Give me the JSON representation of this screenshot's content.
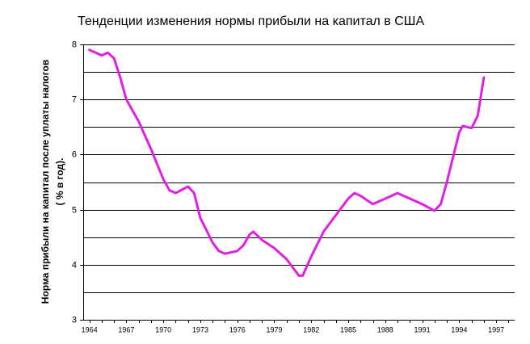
{
  "chart_data": {
    "type": "line",
    "title": "Тенденции изменения нормы прибыли на капитал в США",
    "y_label": [
      "Норма прибыли на капитал после уплаты налогов",
      "( % в год)."
    ],
    "x": [
      1964,
      1965,
      1965.5,
      1966,
      1966.5,
      1967,
      1968,
      1969,
      1970,
      1970.5,
      1971,
      1972,
      1972.5,
      1973,
      1974,
      1974.5,
      1975,
      1976,
      1976.5,
      1977,
      1977.3,
      1978,
      1979,
      1980,
      1981,
      1981.3,
      1982,
      1983,
      1984,
      1985,
      1985.5,
      1986,
      1987,
      1988,
      1989,
      1990,
      1991,
      1992,
      1992.5,
      1993,
      1994,
      1994.3,
      1995,
      1995.5,
      1996
    ],
    "series": [
      {
        "color": "#e020e0",
        "values": [
          7.9,
          7.8,
          7.85,
          7.75,
          7.4,
          7.0,
          6.6,
          6.1,
          5.55,
          5.35,
          5.3,
          5.42,
          5.3,
          4.85,
          4.4,
          4.25,
          4.2,
          4.25,
          4.35,
          4.55,
          4.6,
          4.45,
          4.3,
          4.1,
          3.8,
          3.8,
          4.15,
          4.6,
          4.9,
          5.2,
          5.3,
          5.25,
          5.1,
          5.2,
          5.3,
          5.2,
          5.1,
          4.98,
          5.1,
          5.5,
          6.4,
          6.52,
          6.48,
          6.7,
          7.4
        ]
      }
    ],
    "xlim": [
      1963.5,
      1998.5
    ],
    "xticks": [
      1964,
      1967,
      1970,
      1973,
      1976,
      1979,
      1982,
      1985,
      1988,
      1991,
      1994,
      1997
    ],
    "minor_xticks": [
      1964,
      1965,
      1966,
      1967,
      1968,
      1969,
      1970,
      1971,
      1972,
      1973,
      1974,
      1975,
      1976,
      1977,
      1978,
      1979,
      1980,
      1981,
      1982,
      1983,
      1984,
      1985,
      1986,
      1987,
      1988,
      1989,
      1990,
      1991,
      1992,
      1993,
      1994,
      1995,
      1996,
      1997,
      1998
    ],
    "ylim": [
      3,
      8
    ],
    "yticks": [
      3,
      4,
      5,
      6,
      7,
      8
    ],
    "minor_yticks": [
      3.5,
      4.5,
      5.5,
      6.5,
      7.5
    ],
    "grid": true
  }
}
